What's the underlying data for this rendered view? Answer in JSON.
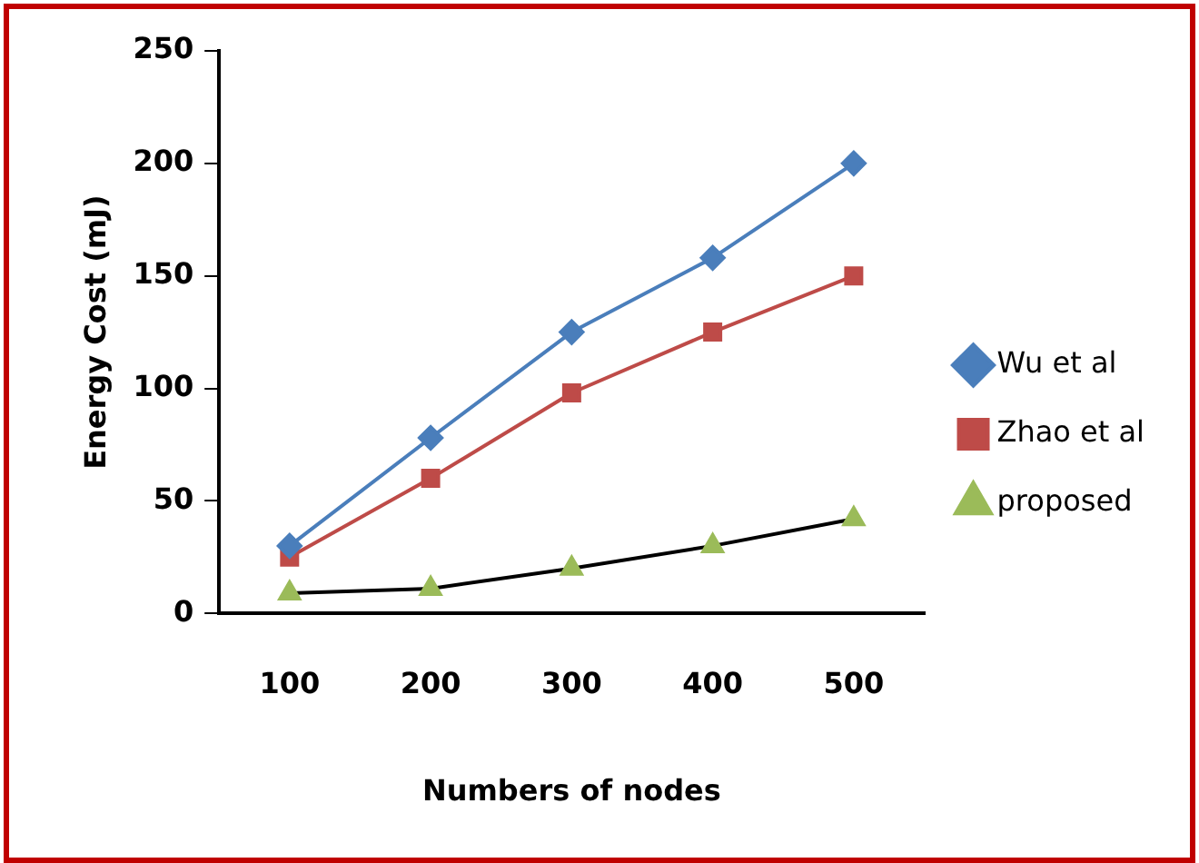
{
  "chart_data": {
    "type": "line",
    "xlabel": "Numbers of nodes",
    "ylabel": "Energy Cost (mJ)",
    "categories": [
      "100",
      "200",
      "300",
      "400",
      "500"
    ],
    "series": [
      {
        "name": "Wu et al",
        "color": "#4a7ebb",
        "marker": "diamond",
        "values": [
          30,
          78,
          125,
          158,
          200
        ]
      },
      {
        "name": "Zhao et al",
        "color": "#be4b48",
        "marker": "square",
        "values": [
          25,
          60,
          98,
          125,
          150
        ]
      },
      {
        "name": "proposed",
        "color": "#000000",
        "colors": [
          "#9bbb59",
          "#9bbb59",
          "#9bbb59",
          "#9bbb59",
          "#9bbb59"
        ],
        "marker": "triangle",
        "values": [
          9,
          11,
          20,
          30,
          42
        ]
      }
    ],
    "ylim": [
      0,
      250
    ],
    "yticks": [
      0,
      50,
      100,
      150,
      200,
      250
    ],
    "grid": false,
    "legend": "right"
  }
}
